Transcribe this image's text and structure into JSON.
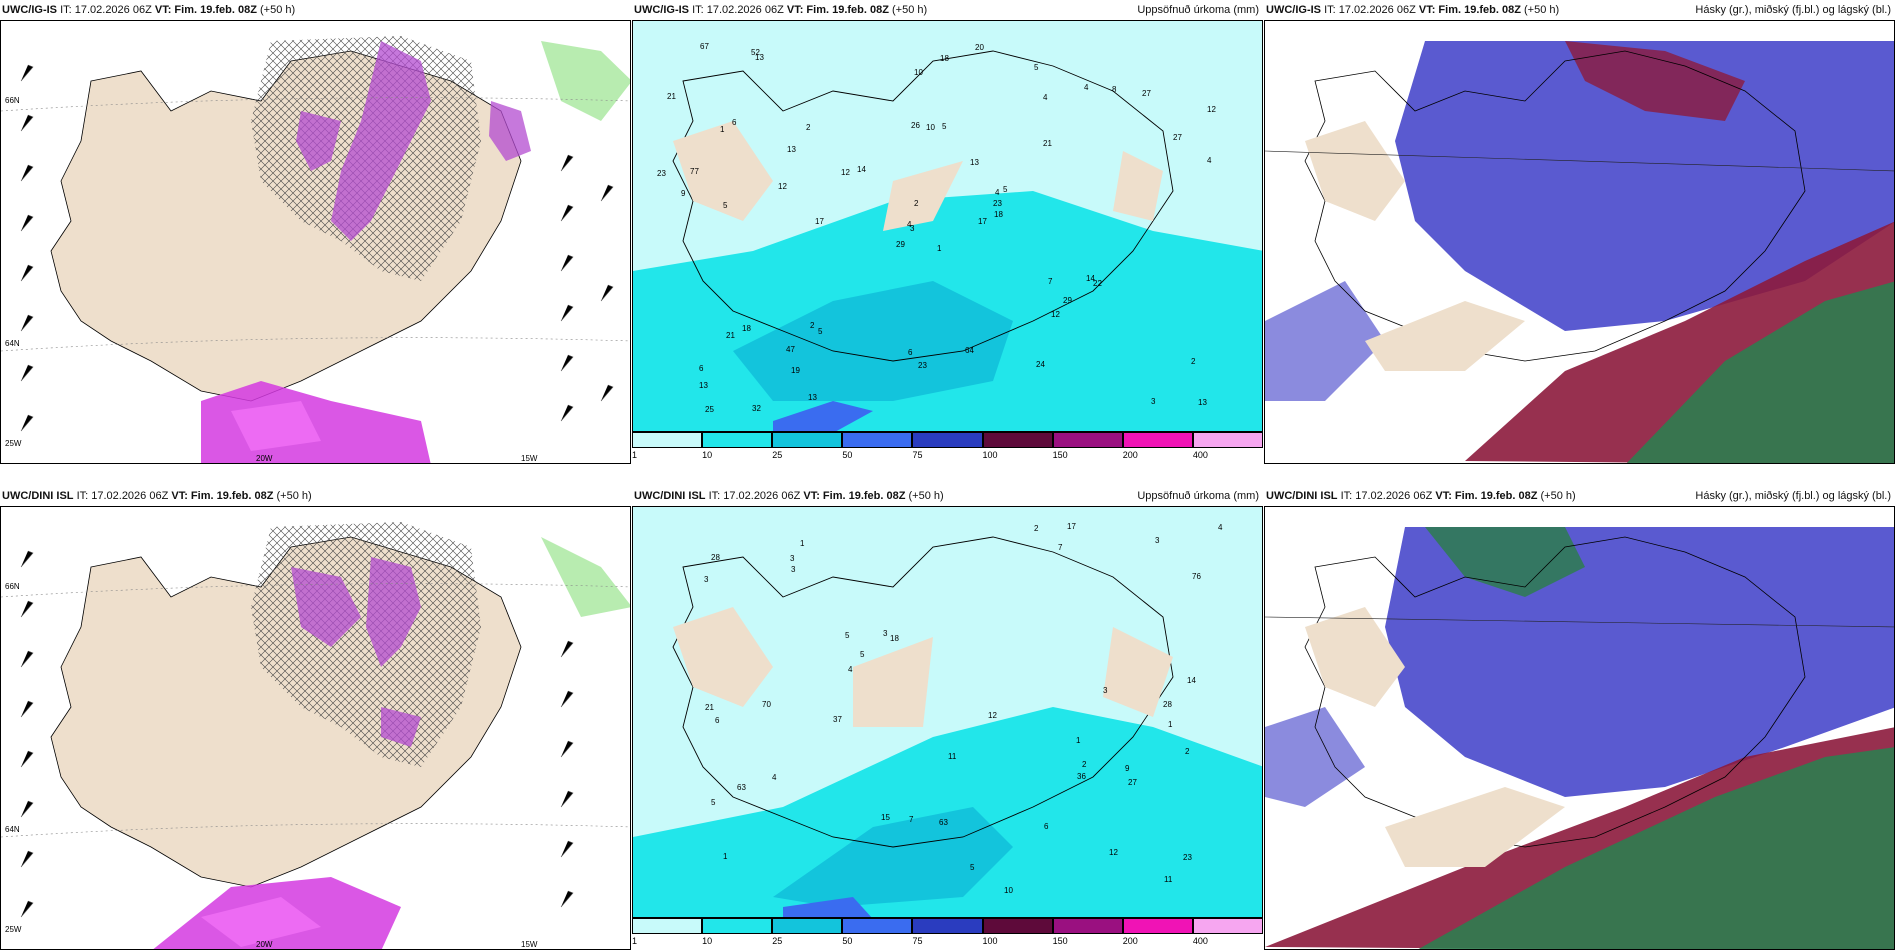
{
  "panels": [
    {
      "model": "UWC/IG-IS",
      "it": "IT: 17.02.2026 06Z",
      "vt_label": "VT:",
      "vt": "Fim. 19.feb. 08Z",
      "lead": "(+50 h)",
      "right": ""
    },
    {
      "model": "UWC/IG-IS",
      "it": "IT: 17.02.2026 06Z",
      "vt_label": "VT:",
      "vt": "Fim. 19.feb. 08Z",
      "lead": "(+50 h)",
      "right": "Uppsöfnuð úrkoma (mm)"
    },
    {
      "model": "UWC/IG-IS",
      "it": "IT: 17.02.2026 06Z",
      "vt_label": "VT:",
      "vt": "Fim. 19.feb. 08Z",
      "lead": "(+50 h)",
      "right": "Hásky (gr.), miðský (fj.bl.) og lágský (bl.)"
    },
    {
      "model": "UWC/DINI ISL",
      "it": "IT: 17.02.2026 06Z",
      "vt_label": "VT:",
      "vt": "Fim. 19.feb. 08Z",
      "lead": "(+50 h)",
      "right": ""
    },
    {
      "model": "UWC/DINI ISL",
      "it": "IT: 17.02.2026 06Z",
      "vt_label": "VT:",
      "vt": "Fim. 19.feb. 08Z",
      "lead": "(+50 h)",
      "right": "Uppsöfnuð úrkoma (mm)"
    },
    {
      "model": "UWC/DINI ISL",
      "it": "IT: 17.02.2026 06Z",
      "vt_label": "VT:",
      "vt": "Fim. 19.feb. 08Z",
      "lead": "(+50 h)",
      "right": "Hásky (gr.), miðský (fj.bl.) og lágský (bl.)"
    }
  ],
  "colorbar": {
    "labels": [
      "1",
      "10",
      "25",
      "50",
      "75",
      "100",
      "150",
      "200",
      "400"
    ],
    "colors": [
      "#c8fafa",
      "#22e6ea",
      "#13c4dc",
      "#3a6cf0",
      "#2a3cbf",
      "#5e0a3a",
      "#9a1080",
      "#f013b5",
      "#f6a6f0"
    ]
  },
  "coords": {
    "lat_66": "66N",
    "lat_64": "64N",
    "lon_25": "25W",
    "lon_20": "20W",
    "lon_15": "15W"
  },
  "precip_top": [
    "1",
    "1",
    "3",
    "6",
    "4",
    "5",
    "5",
    "5",
    "4",
    "17",
    "13",
    "13",
    "5",
    "12",
    "29",
    "21",
    "32",
    "26",
    "13",
    "18",
    "14",
    "13",
    "19",
    "10",
    "5",
    "22",
    "6",
    "10",
    "9",
    "7",
    "4",
    "4",
    "6",
    "2",
    "2",
    "4",
    "2",
    "3",
    "2",
    "14",
    "20",
    "12",
    "12",
    "12",
    "13",
    "23",
    "23",
    "25",
    "23",
    "18",
    "21",
    "27",
    "21",
    "29",
    "24",
    "47",
    "52",
    "67",
    "64",
    "27",
    "18",
    "17",
    "77",
    "13",
    "8"
  ],
  "precip_bottom": [
    "1",
    "1",
    "1",
    "1",
    "18",
    "12",
    "5",
    "7",
    "5",
    "10",
    "3",
    "21",
    "28",
    "23",
    "15",
    "14",
    "11",
    "12",
    "3",
    "4",
    "4",
    "3",
    "4",
    "2",
    "2",
    "3",
    "2",
    "6",
    "3",
    "3",
    "5",
    "6",
    "5",
    "37",
    "28",
    "27",
    "36",
    "70",
    "63",
    "63",
    "76",
    "17",
    "11",
    "7",
    "9"
  ],
  "clouds": {
    "high_color": "#2e7d4f",
    "mid_color": "#5a5ad0",
    "low_color": "#8c1a3c"
  }
}
